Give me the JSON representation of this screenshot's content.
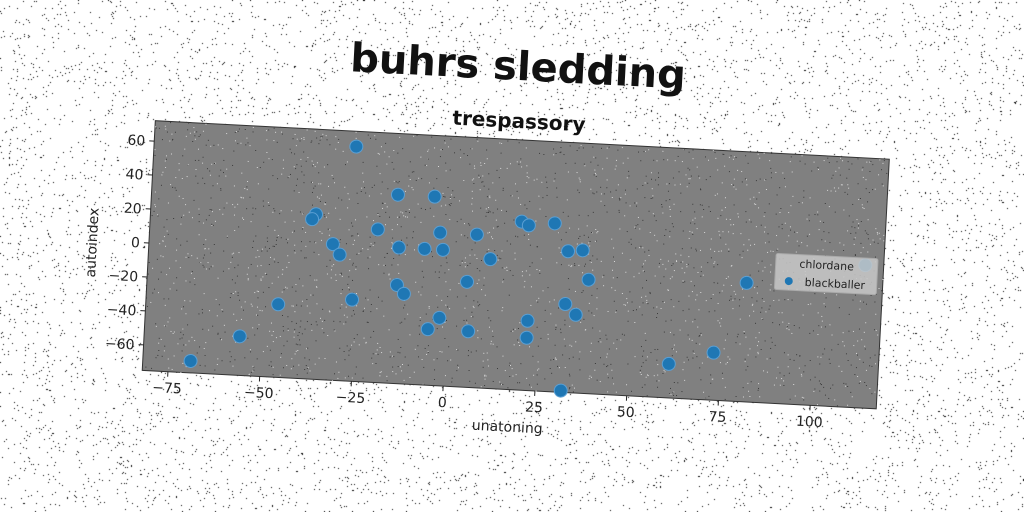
{
  "chart_data": {
    "type": "scatter",
    "title": "buhrs sledding",
    "subtitle": "trespassory",
    "xlabel": "unatoning",
    "ylabel": "autoindex",
    "xlim": [
      -82,
      118
    ],
    "ylim": [
      -75,
      72
    ],
    "xticks": [
      -75,
      -50,
      -25,
      0,
      25,
      50,
      75,
      100
    ],
    "yticks": [
      -60,
      -40,
      -20,
      0,
      20,
      40,
      60
    ],
    "grid": false,
    "legend": {
      "title": "chlordane",
      "placement": "right"
    },
    "colors": {
      "series": "#1f77b4",
      "plot_bg": "#808080"
    },
    "series": [
      {
        "name": "blackballer",
        "points": [
          {
            "x": -27,
            "y": 63
          },
          {
            "x": -15,
            "y": 36
          },
          {
            "x": -5,
            "y": 36
          },
          {
            "x": -37,
            "y": 22
          },
          {
            "x": -38,
            "y": 19
          },
          {
            "x": -20,
            "y": 15
          },
          {
            "x": -3,
            "y": 15
          },
          {
            "x": 7,
            "y": 15
          },
          {
            "x": 19,
            "y": 24
          },
          {
            "x": 21,
            "y": 22
          },
          {
            "x": 28,
            "y": 24
          },
          {
            "x": 32,
            "y": 8
          },
          {
            "x": 36,
            "y": 9
          },
          {
            "x": -32,
            "y": 5
          },
          {
            "x": -30,
            "y": -1
          },
          {
            "x": -14,
            "y": 5
          },
          {
            "x": -7,
            "y": 5
          },
          {
            "x": -2,
            "y": 5
          },
          {
            "x": 11,
            "y": 1
          },
          {
            "x": 5,
            "y": -13
          },
          {
            "x": 38,
            "y": -8
          },
          {
            "x": 32,
            "y": -23
          },
          {
            "x": 35,
            "y": -29
          },
          {
            "x": -14,
            "y": -17
          },
          {
            "x": -12,
            "y": -22
          },
          {
            "x": -26,
            "y": -27
          },
          {
            "x": -46,
            "y": -32
          },
          {
            "x": -56,
            "y": -52
          },
          {
            "x": -69,
            "y": -68
          },
          {
            "x": -2,
            "y": -35
          },
          {
            "x": -5,
            "y": -42
          },
          {
            "x": 6,
            "y": -42
          },
          {
            "x": 22,
            "y": -34
          },
          {
            "x": 22,
            "y": -44
          },
          {
            "x": 32,
            "y": -74
          },
          {
            "x": 61,
            "y": -55
          },
          {
            "x": 73,
            "y": -47
          },
          {
            "x": 81,
            "y": -5
          },
          {
            "x": 113,
            "y": 9
          }
        ]
      }
    ]
  }
}
